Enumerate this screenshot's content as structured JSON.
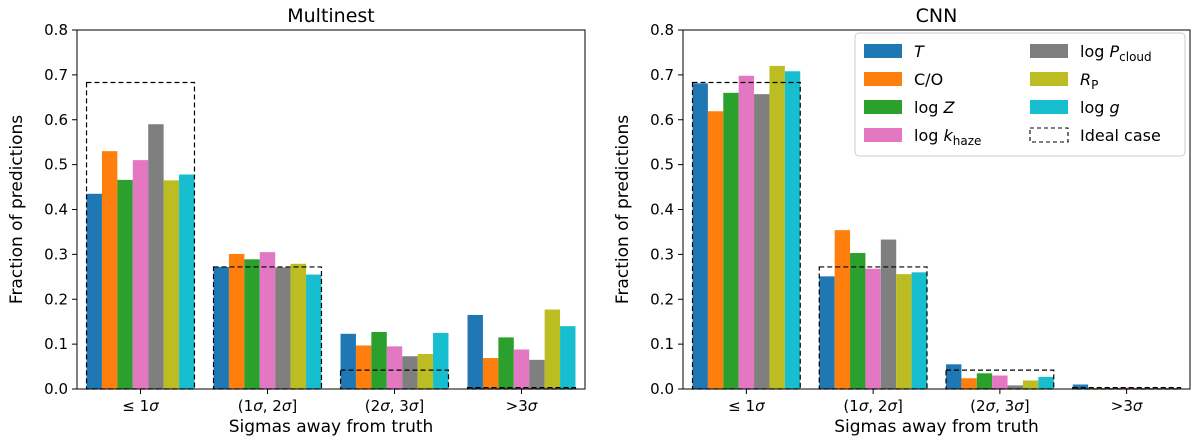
{
  "chart_data": [
    {
      "type": "bar",
      "title": "Multinest",
      "xlabel": "Sigmas away from truth",
      "ylabel": "Fraction of predictions",
      "categories": [
        "≤ 1σ",
        "(1σ, 2σ]",
        "(2σ, 3σ]",
        ">3σ"
      ],
      "ylim": [
        0,
        0.8
      ],
      "yticks": [
        "0.0",
        "0.1",
        "0.2",
        "0.3",
        "0.4",
        "0.5",
        "0.6",
        "0.7",
        "0.8"
      ],
      "grid": false,
      "series": [
        {
          "name": "T",
          "color": "#1f77b4",
          "values": [
            0.435,
            0.272,
            0.123,
            0.165
          ]
        },
        {
          "name": "C/O",
          "color": "#ff7f0e",
          "values": [
            0.53,
            0.301,
            0.097,
            0.069
          ]
        },
        {
          "name": "log Z",
          "color": "#2ca02c",
          "values": [
            0.466,
            0.289,
            0.127,
            0.115
          ]
        },
        {
          "name": "log k_haze",
          "color": "#e377c2",
          "values": [
            0.51,
            0.305,
            0.095,
            0.088
          ]
        },
        {
          "name": "log P_cloud",
          "color": "#7f7f7f",
          "values": [
            0.59,
            0.271,
            0.073,
            0.065
          ]
        },
        {
          "name": "R_P",
          "color": "#bcbd22",
          "values": [
            0.465,
            0.279,
            0.078,
            0.177
          ]
        },
        {
          "name": "log g",
          "color": "#17becf",
          "values": [
            0.478,
            0.255,
            0.125,
            0.14
          ]
        }
      ],
      "ideal_case": {
        "name": "Ideal case",
        "values": [
          0.683,
          0.272,
          0.042,
          0.003
        ]
      }
    },
    {
      "type": "bar",
      "title": "CNN",
      "xlabel": "Sigmas away from truth",
      "ylabel": "Fraction of predictions",
      "categories": [
        "≤ 1σ",
        "(1σ, 2σ]",
        "(2σ, 3σ]",
        ">3σ"
      ],
      "ylim": [
        0,
        0.8
      ],
      "yticks": [
        "0.0",
        "0.1",
        "0.2",
        "0.3",
        "0.4",
        "0.5",
        "0.6",
        "0.7",
        "0.8"
      ],
      "grid": false,
      "legend_position": "top-right",
      "series": [
        {
          "name": "T",
          "color": "#1f77b4",
          "values": [
            0.681,
            0.251,
            0.055,
            0.01
          ]
        },
        {
          "name": "C/O",
          "color": "#ff7f0e",
          "values": [
            0.619,
            0.354,
            0.024,
            0.002
          ]
        },
        {
          "name": "log Z",
          "color": "#2ca02c",
          "values": [
            0.66,
            0.303,
            0.035,
            0.002
          ]
        },
        {
          "name": "log k_haze",
          "color": "#e377c2",
          "values": [
            0.698,
            0.268,
            0.03,
            0.003
          ]
        },
        {
          "name": "log P_cloud",
          "color": "#7f7f7f",
          "values": [
            0.657,
            0.333,
            0.008,
            0.002
          ]
        },
        {
          "name": "R_P",
          "color": "#bcbd22",
          "values": [
            0.72,
            0.256,
            0.019,
            0.002
          ]
        },
        {
          "name": "log g",
          "color": "#17becf",
          "values": [
            0.708,
            0.26,
            0.027,
            0.002
          ]
        }
      ],
      "ideal_case": {
        "name": "Ideal case",
        "values": [
          0.683,
          0.272,
          0.042,
          0.003
        ]
      }
    }
  ]
}
